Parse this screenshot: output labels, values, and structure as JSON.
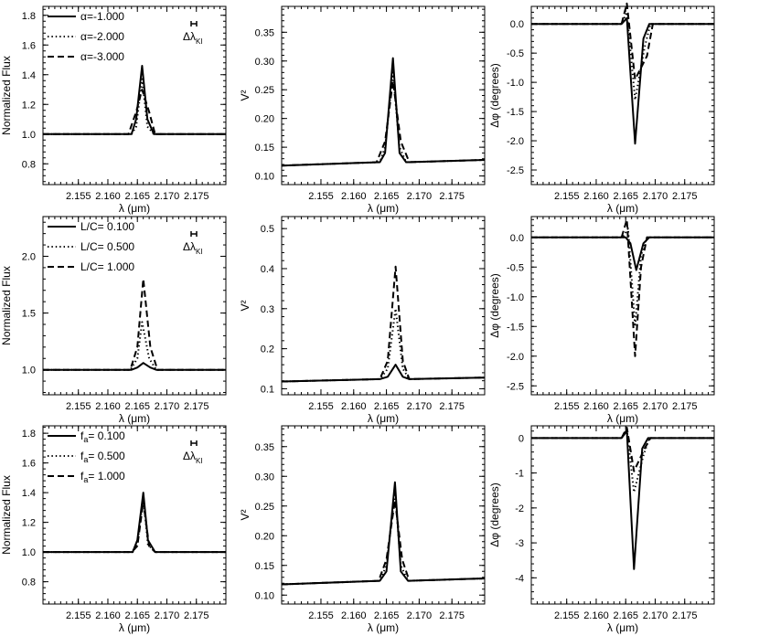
{
  "figure": {
    "columns": [
      {
        "ylabel": "Normalized Flux",
        "xlabel": "λ (μm)"
      },
      {
        "ylabel": "V²",
        "xlabel": "λ (μm)"
      },
      {
        "ylabel": "Δφ (degrees)",
        "xlabel": "λ (μm)"
      }
    ],
    "resolution_label": "Δλ",
    "resolution_sub": "KI"
  },
  "chart_data": [
    {
      "type": "line",
      "row": 0,
      "col": 0,
      "quantity": "flux",
      "xlabel": "λ (μm)",
      "ylabel": "Normalized Flux",
      "xlim": [
        2.149,
        2.18
      ],
      "ylim": [
        0.66,
        1.86
      ],
      "xticks": [
        "2.155",
        "2.160",
        "2.165",
        "2.170",
        "2.175"
      ],
      "yticks": [
        "0.8",
        "1.0",
        "1.2",
        "1.4",
        "1.6",
        "1.8"
      ],
      "legend": [
        "α=-1.000",
        "α=-2.000",
        "α=-3.000"
      ],
      "series": [
        {
          "name": "α=-1.000",
          "style": "solid",
          "x": [
            2.149,
            2.164,
            2.1648,
            2.1658,
            2.1667,
            2.1678,
            2.18
          ],
          "y": [
            1.0,
            1.0,
            1.1,
            1.46,
            1.1,
            1.0,
            1.0
          ]
        },
        {
          "name": "α=-2.000",
          "style": "dotted",
          "x": [
            2.149,
            2.164,
            2.1648,
            2.1658,
            2.1667,
            2.1678,
            2.18
          ],
          "y": [
            1.0,
            1.0,
            1.05,
            1.37,
            1.05,
            1.0,
            1.0
          ]
        },
        {
          "name": "α=-3.000",
          "style": "dashed",
          "x": [
            2.149,
            2.1635,
            2.1648,
            2.1658,
            2.167,
            2.168,
            2.18
          ],
          "y": [
            1.0,
            1.0,
            1.15,
            1.3,
            1.15,
            1.0,
            1.0
          ]
        }
      ]
    },
    {
      "type": "line",
      "row": 0,
      "col": 1,
      "quantity": "V2",
      "xlabel": "λ (μm)",
      "ylabel": "V²",
      "xlim": [
        2.149,
        2.18
      ],
      "ylim": [
        0.085,
        0.395
      ],
      "xticks": [
        "2.155",
        "2.160",
        "2.165",
        "2.170",
        "2.175"
      ],
      "yticks": [
        "0.10",
        "0.15",
        "0.20",
        "0.25",
        "0.30",
        "0.35"
      ],
      "series": [
        {
          "name": "α=-1.000",
          "style": "solid",
          "x": [
            2.149,
            2.164,
            2.1648,
            2.166,
            2.167,
            2.168,
            2.18
          ],
          "y": [
            0.118,
            0.124,
            0.14,
            0.305,
            0.14,
            0.124,
            0.128
          ]
        },
        {
          "name": "α=-2.000",
          "style": "dotted",
          "x": [
            2.149,
            2.164,
            2.1648,
            2.166,
            2.167,
            2.168,
            2.18
          ],
          "y": [
            0.118,
            0.124,
            0.15,
            0.28,
            0.15,
            0.124,
            0.128
          ]
        },
        {
          "name": "α=-3.000",
          "style": "dashed",
          "x": [
            2.149,
            2.1635,
            2.1648,
            2.166,
            2.1672,
            2.1685,
            2.18
          ],
          "y": [
            0.118,
            0.124,
            0.16,
            0.265,
            0.16,
            0.124,
            0.128
          ]
        }
      ]
    },
    {
      "type": "line",
      "row": 0,
      "col": 2,
      "quantity": "phase",
      "xlabel": "λ (μm)",
      "ylabel": "Δφ (degrees)",
      "xlim": [
        2.149,
        2.18
      ],
      "ylim": [
        -2.75,
        0.3
      ],
      "xticks": [
        "2.155",
        "2.160",
        "2.165",
        "2.170",
        "2.175"
      ],
      "yticks": [
        "0.0",
        "-0.5",
        "-1.0",
        "-1.5",
        "-2.0",
        "-2.5"
      ],
      "series": [
        {
          "name": "α=-1.000",
          "style": "solid",
          "x": [
            2.149,
            2.1643,
            2.1652,
            2.1666,
            2.168,
            2.169,
            2.18
          ],
          "y": [
            0.0,
            0.0,
            0.1,
            -2.05,
            -0.25,
            0.0,
            0.0
          ]
        },
        {
          "name": "α=-2.000",
          "style": "dotted",
          "x": [
            2.149,
            2.1643,
            2.1652,
            2.1666,
            2.1682,
            2.1692,
            2.18
          ],
          "y": [
            0.0,
            0.0,
            0.2,
            -1.3,
            -0.4,
            0.0,
            0.0
          ]
        },
        {
          "name": "α=-3.000",
          "style": "dashed",
          "x": [
            2.149,
            2.1643,
            2.1652,
            2.1666,
            2.1686,
            2.1696,
            2.18
          ],
          "y": [
            0.0,
            0.0,
            0.35,
            -0.95,
            -0.55,
            0.0,
            0.0
          ]
        }
      ]
    },
    {
      "type": "line",
      "row": 1,
      "col": 0,
      "quantity": "flux",
      "xlabel": "λ (μm)",
      "ylabel": "Normalized Flux",
      "xlim": [
        2.149,
        2.18
      ],
      "ylim": [
        0.78,
        2.35
      ],
      "xticks": [
        "2.155",
        "2.160",
        "2.165",
        "2.170",
        "2.175"
      ],
      "yticks": [
        "1.0",
        "1.5",
        "2.0"
      ],
      "legend": [
        "L/C= 0.100",
        "L/C= 0.500",
        "L/C= 1.000"
      ],
      "series": [
        {
          "name": "L/C= 0.100",
          "style": "solid",
          "x": [
            2.149,
            2.164,
            2.165,
            2.166,
            2.1672,
            2.1682,
            2.18
          ],
          "y": [
            1.0,
            1.0,
            1.02,
            1.06,
            1.02,
            1.0,
            1.0
          ]
        },
        {
          "name": "L/C= 0.500",
          "style": "dotted",
          "x": [
            2.149,
            2.1638,
            2.165,
            2.1658,
            2.167,
            2.1682,
            2.18
          ],
          "y": [
            1.0,
            1.0,
            1.1,
            1.42,
            1.1,
            1.0,
            1.0
          ]
        },
        {
          "name": "L/C= 1.000",
          "style": "dashed",
          "x": [
            2.149,
            2.1638,
            2.165,
            2.166,
            2.1672,
            2.1684,
            2.18
          ],
          "y": [
            1.0,
            1.0,
            1.2,
            1.8,
            1.2,
            1.0,
            1.0
          ]
        }
      ]
    },
    {
      "type": "line",
      "row": 1,
      "col": 1,
      "quantity": "V2",
      "xlabel": "λ (μm)",
      "ylabel": "V²",
      "xlim": [
        2.149,
        2.18
      ],
      "ylim": [
        0.085,
        0.53
      ],
      "xticks": [
        "2.155",
        "2.160",
        "2.165",
        "2.170",
        "2.175"
      ],
      "yticks": [
        "0.1",
        "0.2",
        "0.3",
        "0.4",
        "0.5"
      ],
      "series": [
        {
          "name": "L/C= 0.100",
          "style": "solid",
          "x": [
            2.149,
            2.164,
            2.1652,
            2.1664,
            2.1675,
            2.1685,
            2.18
          ],
          "y": [
            0.118,
            0.124,
            0.13,
            0.16,
            0.13,
            0.124,
            0.128
          ]
        },
        {
          "name": "L/C= 0.500",
          "style": "dotted",
          "x": [
            2.149,
            2.164,
            2.1652,
            2.1664,
            2.1675,
            2.1685,
            2.18
          ],
          "y": [
            0.118,
            0.124,
            0.15,
            0.3,
            0.15,
            0.124,
            0.128
          ]
        },
        {
          "name": "L/C= 1.000",
          "style": "dashed",
          "x": [
            2.149,
            2.164,
            2.1652,
            2.1664,
            2.1675,
            2.1685,
            2.18
          ],
          "y": [
            0.118,
            0.124,
            0.17,
            0.405,
            0.17,
            0.124,
            0.128
          ]
        }
      ]
    },
    {
      "type": "line",
      "row": 1,
      "col": 2,
      "quantity": "phase",
      "xlabel": "λ (μm)",
      "ylabel": "Δφ (degrees)",
      "xlim": [
        2.149,
        2.18
      ],
      "ylim": [
        -2.65,
        0.35
      ],
      "xticks": [
        "2.155",
        "2.160",
        "2.165",
        "2.170",
        "2.175"
      ],
      "yticks": [
        "0.0",
        "-0.5",
        "-1.0",
        "-1.5",
        "-2.0",
        "-2.5"
      ],
      "series": [
        {
          "name": "L/C= 0.100",
          "style": "solid",
          "x": [
            2.149,
            2.165,
            2.1658,
            2.1668,
            2.168,
            2.169,
            2.18
          ],
          "y": [
            0.0,
            0.0,
            -0.1,
            -0.55,
            -0.1,
            0.0,
            0.0
          ]
        },
        {
          "name": "L/C= 0.500",
          "style": "dotted",
          "x": [
            2.149,
            2.1645,
            2.1654,
            2.1666,
            2.1676,
            2.1686,
            2.18
          ],
          "y": [
            0.0,
            0.0,
            0.15,
            -1.5,
            -0.3,
            0.0,
            0.0
          ]
        },
        {
          "name": "L/C= 1.000",
          "style": "dashed",
          "x": [
            2.149,
            2.1643,
            2.1652,
            2.1666,
            2.1676,
            2.1686,
            2.18
          ],
          "y": [
            0.0,
            0.0,
            0.3,
            -2.0,
            -0.5,
            0.0,
            0.0
          ]
        }
      ]
    },
    {
      "type": "line",
      "row": 2,
      "col": 0,
      "quantity": "flux",
      "xlabel": "λ (μm)",
      "ylabel": "Normalized Flux",
      "xlim": [
        2.149,
        2.18
      ],
      "ylim": [
        0.65,
        1.85
      ],
      "xticks": [
        "2.155",
        "2.160",
        "2.165",
        "2.170",
        "2.175"
      ],
      "yticks": [
        "0.8",
        "1.0",
        "1.2",
        "1.4",
        "1.6",
        "1.8"
      ],
      "legend": [
        "fa= 0.100",
        "fa= 0.500",
        "fa= 1.000"
      ],
      "series": [
        {
          "name": "fa= 0.100",
          "style": "solid",
          "x": [
            2.149,
            2.1642,
            2.165,
            2.166,
            2.1668,
            2.168,
            2.18
          ],
          "y": [
            1.0,
            1.0,
            1.08,
            1.4,
            1.08,
            1.0,
            1.0
          ]
        },
        {
          "name": "fa= 0.500",
          "style": "dotted",
          "x": [
            2.149,
            2.1642,
            2.165,
            2.166,
            2.1668,
            2.168,
            2.18
          ],
          "y": [
            1.0,
            1.0,
            1.05,
            1.37,
            1.05,
            1.0,
            1.0
          ]
        },
        {
          "name": "fa= 1.000",
          "style": "dashed",
          "x": [
            2.149,
            2.164,
            2.165,
            2.166,
            2.167,
            2.168,
            2.18
          ],
          "y": [
            1.0,
            1.0,
            1.04,
            1.34,
            1.04,
            1.0,
            1.0
          ]
        }
      ]
    },
    {
      "type": "line",
      "row": 2,
      "col": 1,
      "quantity": "V2",
      "xlabel": "λ (μm)",
      "ylabel": "V²",
      "xlim": [
        2.149,
        2.18
      ],
      "ylim": [
        0.085,
        0.385
      ],
      "xticks": [
        "2.155",
        "2.160",
        "2.165",
        "2.170",
        "2.175"
      ],
      "yticks": [
        "0.10",
        "0.15",
        "0.20",
        "0.25",
        "0.30",
        "0.35"
      ],
      "series": [
        {
          "name": "fa= 0.100",
          "style": "solid",
          "x": [
            2.149,
            2.164,
            2.165,
            2.1663,
            2.1672,
            2.1683,
            2.18
          ],
          "y": [
            0.118,
            0.124,
            0.14,
            0.29,
            0.14,
            0.124,
            0.128
          ]
        },
        {
          "name": "fa= 0.500",
          "style": "dotted",
          "x": [
            2.149,
            2.164,
            2.165,
            2.1663,
            2.1672,
            2.1683,
            2.18
          ],
          "y": [
            0.118,
            0.124,
            0.15,
            0.275,
            0.15,
            0.124,
            0.128
          ]
        },
        {
          "name": "fa= 1.000",
          "style": "dashed",
          "x": [
            2.149,
            2.1638,
            2.165,
            2.1663,
            2.1674,
            2.1685,
            2.18
          ],
          "y": [
            0.118,
            0.124,
            0.16,
            0.26,
            0.16,
            0.124,
            0.128
          ]
        }
      ]
    },
    {
      "type": "line",
      "row": 2,
      "col": 2,
      "quantity": "phase",
      "xlabel": "λ (μm)",
      "ylabel": "Δφ (degrees)",
      "xlim": [
        2.149,
        2.18
      ],
      "ylim": [
        -4.75,
        0.35
      ],
      "xticks": [
        "2.155",
        "2.160",
        "2.165",
        "2.170",
        "2.175"
      ],
      "yticks": [
        "0",
        "-1",
        "-2",
        "-3",
        "-4"
      ],
      "series": [
        {
          "name": "fa= 0.100",
          "style": "solid",
          "x": [
            2.149,
            2.1643,
            2.1652,
            2.1664,
            2.1678,
            2.1688,
            2.18
          ],
          "y": [
            0.0,
            0.0,
            0.2,
            -3.75,
            -0.3,
            0.0,
            0.0
          ]
        },
        {
          "name": "fa= 0.500",
          "style": "dotted",
          "x": [
            2.149,
            2.1643,
            2.1652,
            2.1664,
            2.168,
            2.169,
            2.18
          ],
          "y": [
            0.0,
            0.0,
            0.25,
            -1.55,
            -0.5,
            0.0,
            0.0
          ]
        },
        {
          "name": "fa= 1.000",
          "style": "dashed",
          "x": [
            2.149,
            2.1643,
            2.1652,
            2.1664,
            2.1682,
            2.1692,
            2.18
          ],
          "y": [
            0.0,
            0.0,
            0.3,
            -0.95,
            -0.3,
            0.0,
            0.0
          ]
        }
      ]
    }
  ]
}
